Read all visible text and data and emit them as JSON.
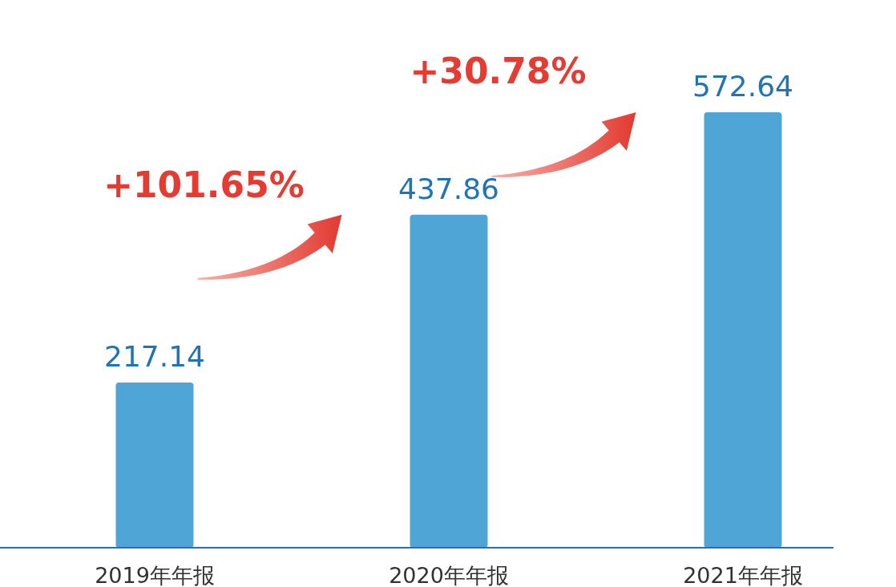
{
  "chart_data": {
    "type": "bar",
    "categories": [
      "2019年年报",
      "2020年年报",
      "2021年年报"
    ],
    "values": [
      217.14,
      437.86,
      572.64
    ],
    "color": "#4ea5d6",
    "data_labels": true,
    "annotations": [
      "+101.65%",
      "+30.78%"
    ]
  }
}
